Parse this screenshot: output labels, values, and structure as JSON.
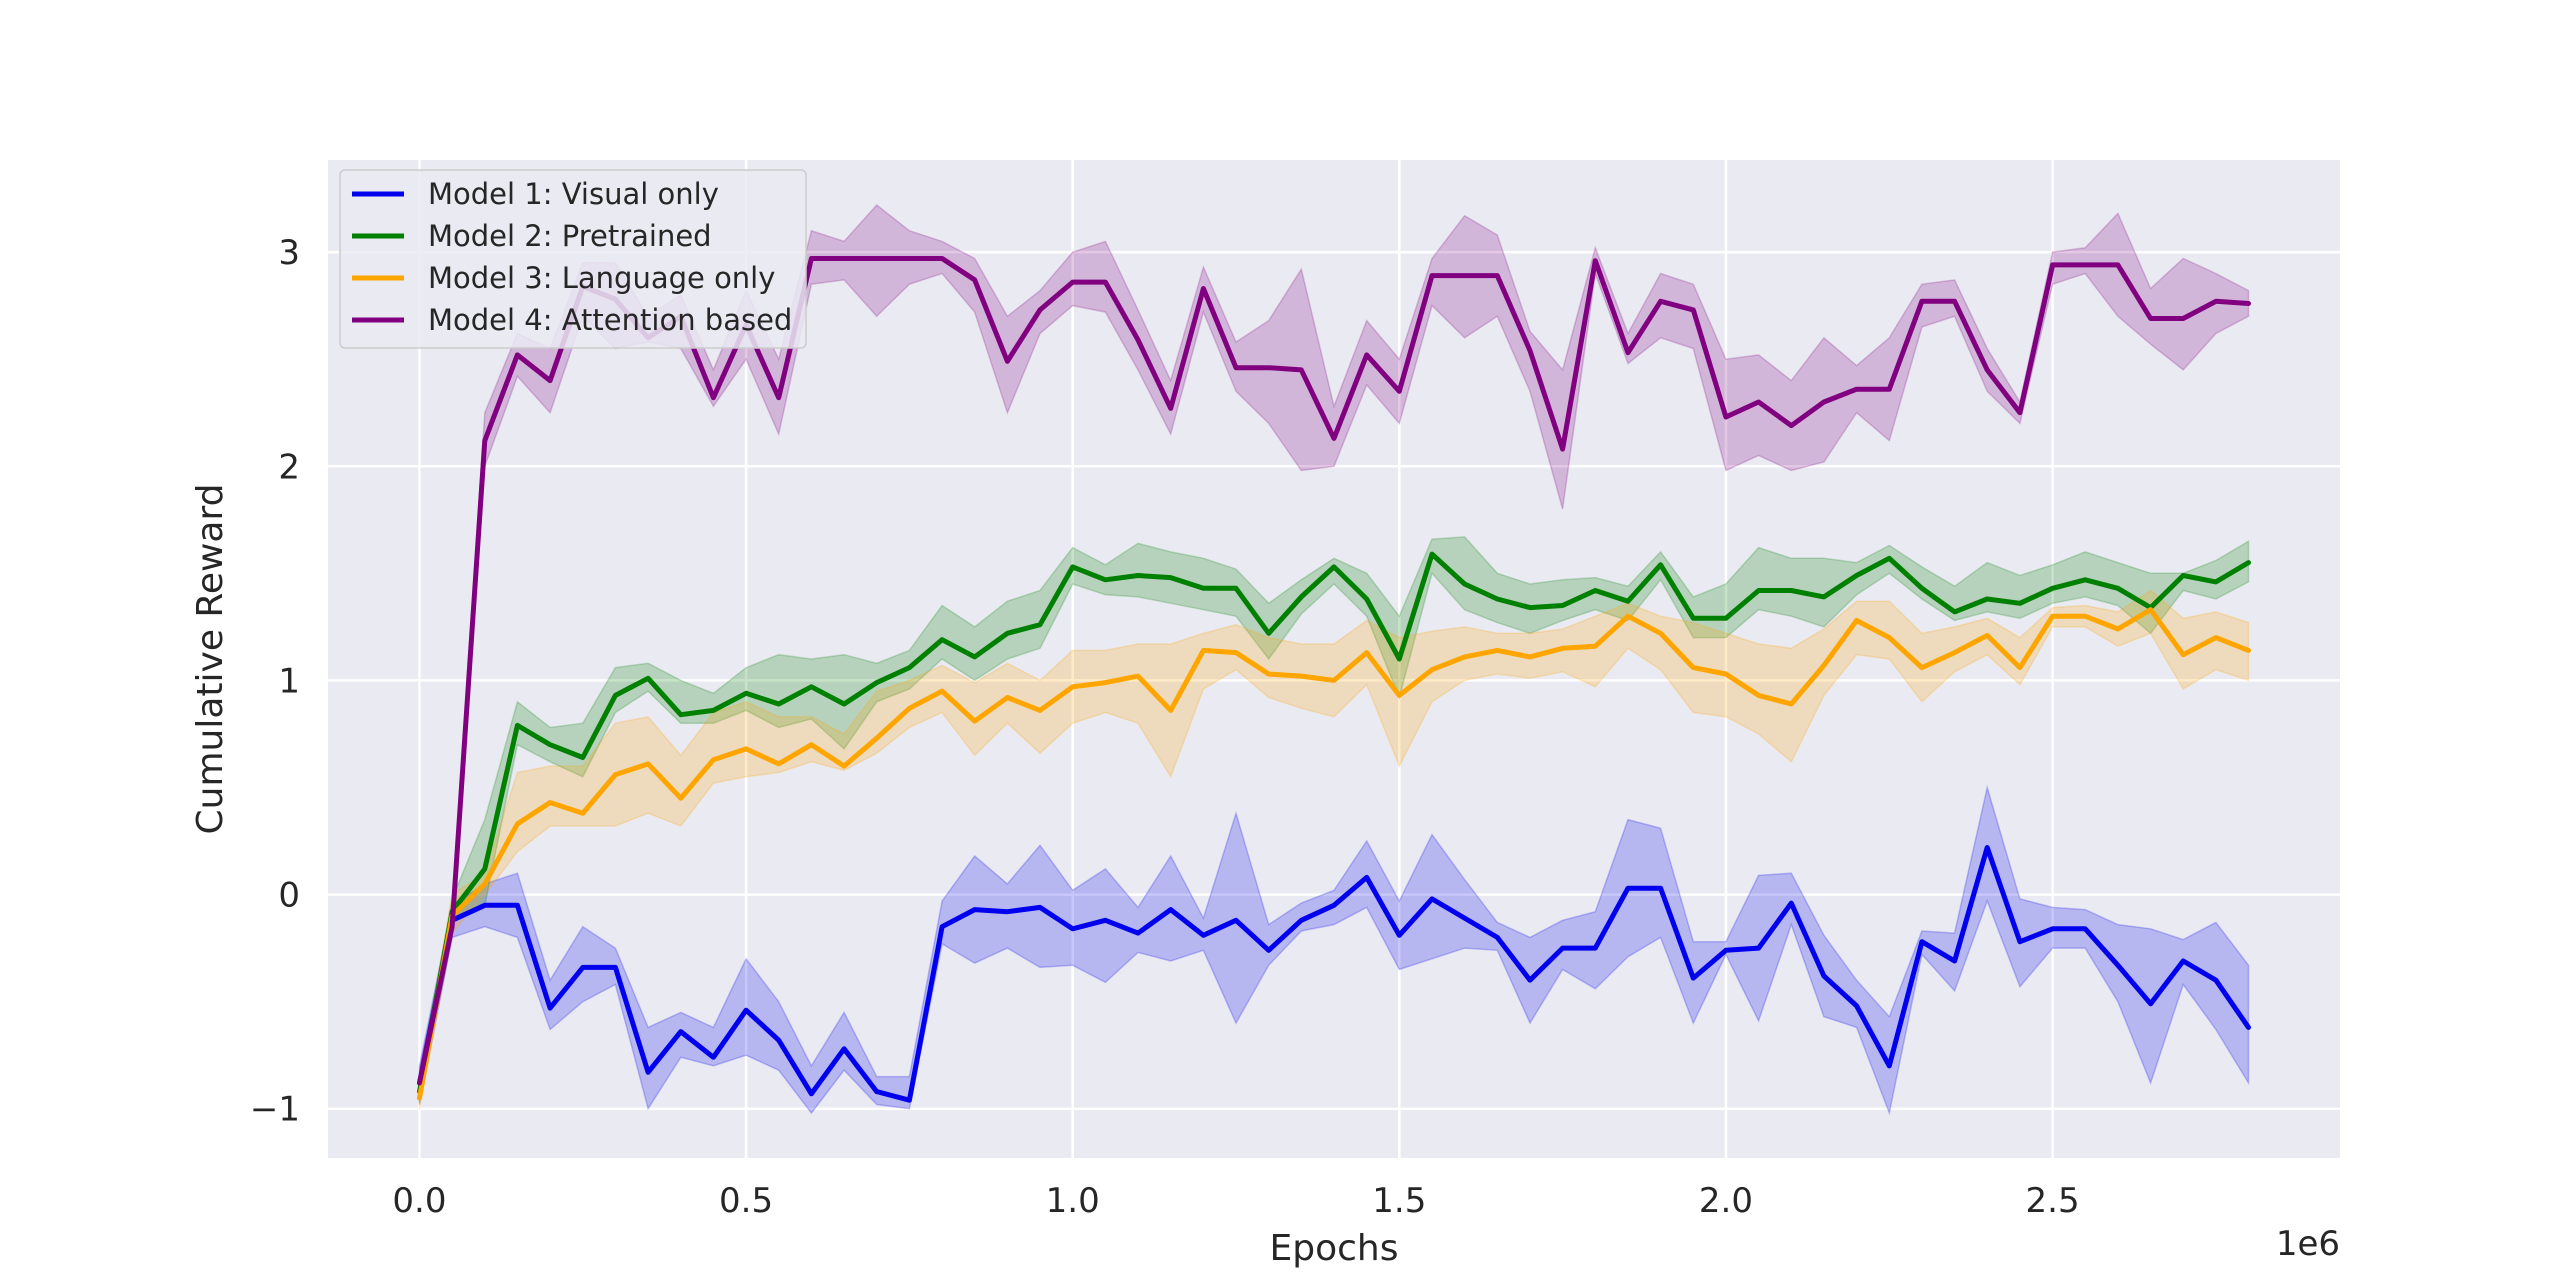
{
  "chart_data": {
    "type": "line",
    "xlabel": "Epochs",
    "ylabel": "Cumulative Reward",
    "x_offset_label": "1e6",
    "xlim": [
      -0.14,
      2.94
    ],
    "ylim": [
      -1.23,
      3.43
    ],
    "x_ticks": [
      0.0,
      0.5,
      1.0,
      1.5,
      2.0,
      2.5
    ],
    "x_tick_labels": [
      "0.0",
      "0.5",
      "1.0",
      "1.5",
      "2.0",
      "2.5"
    ],
    "y_ticks": [
      -1,
      0,
      1,
      2,
      3
    ],
    "y_tick_labels": [
      "−1",
      "0",
      "1",
      "2",
      "3"
    ],
    "grid": true,
    "legend_position": "top-left",
    "x": [
      0.0,
      0.05,
      0.1,
      0.15,
      0.2,
      0.25,
      0.3,
      0.35,
      0.4,
      0.45,
      0.5,
      0.55,
      0.6,
      0.65,
      0.7,
      0.75,
      0.8,
      0.85,
      0.9,
      0.95,
      1.0,
      1.05,
      1.1,
      1.15,
      1.2,
      1.25,
      1.3,
      1.35,
      1.4,
      1.45,
      1.5,
      1.55,
      1.6,
      1.65,
      1.7,
      1.75,
      1.8,
      1.85,
      1.9,
      1.95,
      2.0,
      2.05,
      2.1,
      2.15,
      2.2,
      2.25,
      2.3,
      2.35,
      2.4,
      2.45,
      2.5,
      2.55,
      2.6,
      2.65,
      2.7,
      2.75,
      2.8
    ],
    "series": [
      {
        "name": "Model 1: Visual only",
        "color": "#0000ee",
        "values": [
          -0.88,
          -0.12,
          -0.05,
          -0.05,
          -0.53,
          -0.34,
          -0.34,
          -0.83,
          -0.64,
          -0.76,
          -0.54,
          -0.68,
          -0.93,
          -0.72,
          -0.92,
          -0.96,
          -0.15,
          -0.07,
          -0.08,
          -0.06,
          -0.16,
          -0.12,
          -0.18,
          -0.07,
          -0.19,
          -0.12,
          -0.26,
          -0.12,
          -0.05,
          0.08,
          -0.19,
          -0.02,
          -0.11,
          -0.2,
          -0.4,
          -0.25,
          -0.25,
          0.03,
          0.03,
          -0.39,
          -0.26,
          -0.25,
          -0.04,
          -0.38,
          -0.52,
          -0.8,
          -0.22,
          -0.31,
          0.22,
          -0.22,
          -0.16,
          -0.16,
          -0.33,
          -0.51,
          -0.31,
          -0.4,
          -0.62
        ],
        "band_low": [
          -0.98,
          -0.2,
          -0.15,
          -0.2,
          -0.63,
          -0.5,
          -0.42,
          -1.0,
          -0.76,
          -0.8,
          -0.75,
          -0.82,
          -1.02,
          -0.82,
          -0.98,
          -1.0,
          -0.23,
          -0.32,
          -0.25,
          -0.34,
          -0.33,
          -0.41,
          -0.27,
          -0.31,
          -0.26,
          -0.6,
          -0.33,
          -0.17,
          -0.14,
          -0.06,
          -0.35,
          -0.3,
          -0.25,
          -0.26,
          -0.6,
          -0.35,
          -0.44,
          -0.29,
          -0.2,
          -0.6,
          -0.28,
          -0.59,
          -0.14,
          -0.57,
          -0.62,
          -1.02,
          -0.28,
          -0.45,
          -0.03,
          -0.43,
          -0.25,
          -0.25,
          -0.5,
          -0.88,
          -0.42,
          -0.63,
          -0.88
        ],
        "band_high": [
          -0.8,
          -0.05,
          0.05,
          0.1,
          -0.4,
          -0.15,
          -0.25,
          -0.62,
          -0.55,
          -0.62,
          -0.3,
          -0.5,
          -0.8,
          -0.55,
          -0.85,
          -0.85,
          -0.03,
          0.18,
          0.05,
          0.23,
          0.02,
          0.12,
          -0.06,
          0.18,
          -0.11,
          0.38,
          -0.14,
          -0.04,
          0.02,
          0.25,
          -0.03,
          0.28,
          0.07,
          -0.13,
          -0.2,
          -0.12,
          -0.08,
          0.35,
          0.31,
          -0.22,
          -0.22,
          0.09,
          0.1,
          -0.19,
          -0.4,
          -0.57,
          -0.17,
          -0.18,
          0.5,
          -0.02,
          -0.06,
          -0.07,
          -0.14,
          -0.16,
          -0.21,
          -0.13,
          -0.33
        ]
      },
      {
        "name": "Model 2: Pretrained",
        "color": "#008000",
        "values": [
          -0.92,
          -0.08,
          0.12,
          0.79,
          0.7,
          0.64,
          0.93,
          1.01,
          0.84,
          0.86,
          0.94,
          0.89,
          0.97,
          0.89,
          0.99,
          1.06,
          1.19,
          1.11,
          1.22,
          1.26,
          1.53,
          1.47,
          1.49,
          1.48,
          1.43,
          1.43,
          1.22,
          1.39,
          1.53,
          1.38,
          1.1,
          1.59,
          1.45,
          1.38,
          1.34,
          1.35,
          1.42,
          1.37,
          1.54,
          1.29,
          1.29,
          1.42,
          1.42,
          1.39,
          1.49,
          1.57,
          1.43,
          1.32,
          1.38,
          1.36,
          1.43,
          1.47,
          1.43,
          1.34,
          1.49,
          1.46,
          1.55
        ],
        "band_low": [
          -0.97,
          -0.12,
          -0.05,
          0.7,
          0.62,
          0.55,
          0.85,
          0.95,
          0.8,
          0.8,
          0.86,
          0.78,
          0.82,
          0.68,
          0.9,
          0.96,
          1.1,
          1.0,
          1.1,
          1.15,
          1.45,
          1.4,
          1.39,
          1.36,
          1.33,
          1.3,
          1.1,
          1.31,
          1.45,
          1.3,
          0.92,
          1.5,
          1.33,
          1.27,
          1.22,
          1.28,
          1.33,
          1.28,
          1.47,
          1.2,
          1.2,
          1.33,
          1.3,
          1.25,
          1.4,
          1.5,
          1.38,
          1.28,
          1.32,
          1.29,
          1.36,
          1.39,
          1.35,
          1.22,
          1.42,
          1.38,
          1.46
        ],
        "band_high": [
          -0.86,
          -0.02,
          0.35,
          0.9,
          0.78,
          0.8,
          1.06,
          1.08,
          1.0,
          0.94,
          1.06,
          1.12,
          1.1,
          1.12,
          1.08,
          1.14,
          1.35,
          1.25,
          1.37,
          1.42,
          1.62,
          1.54,
          1.64,
          1.6,
          1.57,
          1.52,
          1.36,
          1.47,
          1.57,
          1.5,
          1.3,
          1.66,
          1.67,
          1.5,
          1.45,
          1.47,
          1.48,
          1.44,
          1.6,
          1.39,
          1.45,
          1.62,
          1.57,
          1.57,
          1.55,
          1.63,
          1.53,
          1.44,
          1.55,
          1.49,
          1.54,
          1.6,
          1.55,
          1.5,
          1.5,
          1.56,
          1.65
        ]
      },
      {
        "name": "Model 3: Language only",
        "color": "#ffa500",
        "values": [
          -0.95,
          -0.1,
          0.05,
          0.33,
          0.43,
          0.38,
          0.56,
          0.61,
          0.45,
          0.63,
          0.68,
          0.61,
          0.7,
          0.6,
          0.73,
          0.87,
          0.95,
          0.81,
          0.92,
          0.86,
          0.97,
          0.99,
          1.02,
          0.86,
          1.14,
          1.13,
          1.03,
          1.02,
          1.0,
          1.13,
          0.93,
          1.05,
          1.11,
          1.14,
          1.11,
          1.15,
          1.16,
          1.3,
          1.22,
          1.06,
          1.03,
          0.93,
          0.89,
          1.07,
          1.28,
          1.2,
          1.06,
          1.13,
          1.21,
          1.06,
          1.3,
          1.3,
          1.24,
          1.33,
          1.12,
          1.2,
          1.14
        ],
        "band_low": [
          -1.0,
          -0.18,
          0.0,
          0.2,
          0.32,
          0.32,
          0.32,
          0.38,
          0.32,
          0.52,
          0.55,
          0.57,
          0.62,
          0.58,
          0.66,
          0.78,
          0.85,
          0.65,
          0.8,
          0.66,
          0.8,
          0.85,
          0.8,
          0.55,
          0.96,
          1.05,
          0.92,
          0.87,
          0.83,
          0.98,
          0.6,
          0.9,
          1.0,
          1.03,
          1.01,
          1.04,
          0.97,
          1.15,
          1.05,
          0.85,
          0.83,
          0.75,
          0.62,
          0.93,
          1.12,
          1.1,
          0.9,
          1.04,
          1.12,
          0.98,
          1.25,
          1.25,
          1.16,
          1.22,
          0.96,
          1.05,
          1.0
        ],
        "band_high": [
          -0.9,
          0.0,
          0.1,
          0.57,
          0.6,
          0.6,
          0.8,
          0.83,
          0.65,
          0.85,
          0.9,
          0.83,
          0.83,
          0.75,
          0.95,
          1.0,
          1.07,
          0.99,
          1.08,
          1.0,
          1.14,
          1.14,
          1.17,
          1.17,
          1.22,
          1.26,
          1.2,
          1.17,
          1.17,
          1.28,
          1.2,
          1.23,
          1.25,
          1.22,
          1.22,
          1.24,
          1.3,
          1.36,
          1.3,
          1.27,
          1.22,
          1.17,
          1.15,
          1.24,
          1.37,
          1.37,
          1.22,
          1.25,
          1.29,
          1.2,
          1.34,
          1.35,
          1.32,
          1.42,
          1.29,
          1.32,
          1.27
        ]
      },
      {
        "name": "Model 4: Attention based",
        "color": "#800080",
        "values": [
          -0.88,
          -0.15,
          2.12,
          2.52,
          2.4,
          2.84,
          2.78,
          2.6,
          2.7,
          2.32,
          2.66,
          2.32,
          2.97,
          2.97,
          2.97,
          2.97,
          2.97,
          2.87,
          2.49,
          2.73,
          2.86,
          2.86,
          2.59,
          2.27,
          2.83,
          2.46,
          2.46,
          2.45,
          2.13,
          2.52,
          2.35,
          2.89,
          2.89,
          2.89,
          2.54,
          2.08,
          2.96,
          2.53,
          2.77,
          2.73,
          2.23,
          2.3,
          2.19,
          2.3,
          2.36,
          2.36,
          2.77,
          2.77,
          2.45,
          2.25,
          2.94,
          2.94,
          2.94,
          2.69,
          2.69,
          2.77,
          2.76
        ],
        "band_low": [
          -0.95,
          -0.2,
          2.0,
          2.42,
          2.25,
          2.7,
          2.55,
          2.58,
          2.55,
          2.28,
          2.5,
          2.15,
          2.85,
          2.87,
          2.7,
          2.85,
          2.9,
          2.72,
          2.25,
          2.62,
          2.75,
          2.72,
          2.45,
          2.15,
          2.72,
          2.35,
          2.2,
          1.98,
          2.0,
          2.38,
          2.2,
          2.75,
          2.6,
          2.7,
          2.35,
          1.8,
          2.9,
          2.48,
          2.6,
          2.55,
          1.98,
          2.05,
          1.98,
          2.02,
          2.25,
          2.12,
          2.65,
          2.7,
          2.35,
          2.2,
          2.85,
          2.9,
          2.7,
          2.57,
          2.45,
          2.62,
          2.7
        ],
        "band_high": [
          -0.82,
          -0.1,
          2.25,
          2.62,
          2.55,
          2.95,
          2.95,
          2.7,
          2.8,
          2.45,
          2.82,
          2.5,
          3.1,
          3.05,
          3.22,
          3.1,
          3.05,
          2.97,
          2.7,
          2.82,
          3.0,
          3.05,
          2.73,
          2.4,
          2.93,
          2.58,
          2.68,
          2.92,
          2.28,
          2.68,
          2.5,
          2.97,
          3.17,
          3.08,
          2.63,
          2.45,
          3.02,
          2.62,
          2.9,
          2.85,
          2.5,
          2.52,
          2.4,
          2.6,
          2.47,
          2.6,
          2.85,
          2.87,
          2.55,
          2.3,
          3.0,
          3.02,
          3.18,
          2.83,
          2.97,
          2.9,
          2.82
        ]
      }
    ]
  }
}
